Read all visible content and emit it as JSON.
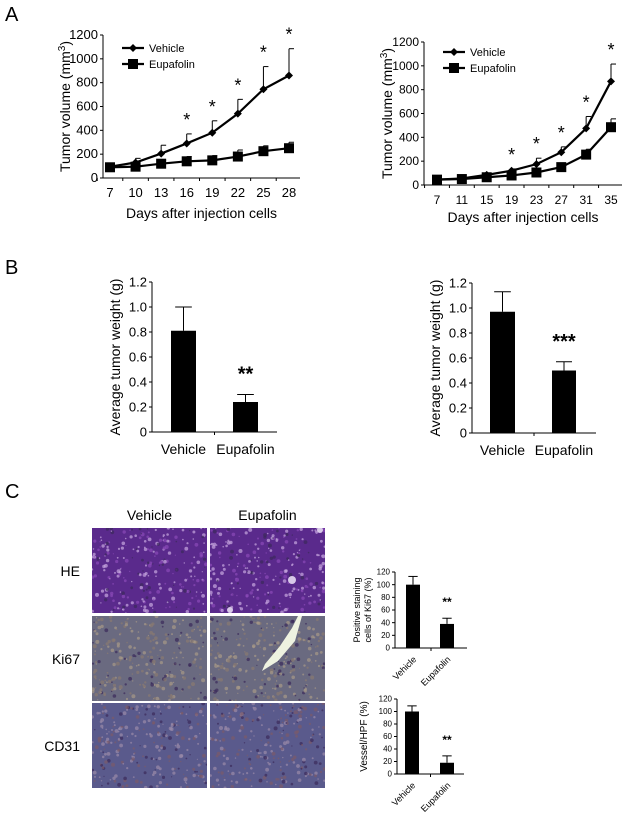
{
  "panels": {
    "A": {
      "letter": "A"
    },
    "B": {
      "letter": "B"
    },
    "C": {
      "letter": "C"
    }
  },
  "histology": {
    "columns": [
      "Vehicle",
      "Eupafolin"
    ],
    "rows": [
      "HE",
      "Ki67",
      "CD31"
    ],
    "colors": {
      "HE": {
        "base": "#5a2a8c",
        "accent": "#8a4ab8",
        "speck": "#c8a8e0"
      },
      "Ki67": {
        "base": "#6a6a80",
        "accent": "#8a7a70",
        "speck": "#a89a88"
      },
      "CD31": {
        "base": "#5a5a8c",
        "accent": "#7a5a6a",
        "speck": "#9a8aa8"
      }
    }
  },
  "chart_data": [
    {
      "id": "A-left",
      "type": "line",
      "title": "",
      "xlabel": "Days after injection cells",
      "ylabel": "Tumor volume (mm3)",
      "x": [
        7,
        10,
        13,
        16,
        19,
        22,
        25,
        28
      ],
      "ylim": [
        0,
        1200
      ],
      "yticks": [
        0,
        200,
        400,
        600,
        800,
        1000,
        1200
      ],
      "legend": [
        "Vehicle",
        "Eupafolin"
      ],
      "legend_position": "upper-left",
      "series": [
        {
          "name": "Vehicle",
          "marker": "diamond",
          "values": [
            95,
            130,
            205,
            290,
            380,
            540,
            745,
            860
          ],
          "errors": [
            10,
            35,
            70,
            80,
            100,
            120,
            190,
            225
          ]
        },
        {
          "name": "Eupafolin",
          "marker": "square",
          "values": [
            90,
            95,
            120,
            140,
            148,
            180,
            225,
            250
          ],
          "errors": [
            10,
            20,
            30,
            40,
            40,
            55,
            45,
            50
          ]
        }
      ],
      "significance": {
        "x": [
          16,
          19,
          22,
          25,
          28
        ],
        "label": "*"
      }
    },
    {
      "id": "A-right",
      "type": "line",
      "title": "",
      "xlabel": "Days after injection cells",
      "ylabel": "Tumor volume (mm3)",
      "x": [
        7,
        11,
        15,
        19,
        23,
        27,
        31,
        35
      ],
      "ylim": [
        0,
        1200
      ],
      "yticks": [
        0,
        200,
        400,
        600,
        800,
        1000,
        1200
      ],
      "legend": [
        "Vehicle",
        "Eupafolin"
      ],
      "legend_position": "upper-left",
      "series": [
        {
          "name": "Vehicle",
          "marker": "diamond",
          "values": [
            45,
            55,
            85,
            120,
            175,
            275,
            475,
            870
          ],
          "errors": [
            5,
            8,
            10,
            15,
            50,
            45,
            100,
            145
          ]
        },
        {
          "name": "Eupafolin",
          "marker": "square",
          "values": [
            45,
            50,
            65,
            80,
            105,
            150,
            255,
            485
          ],
          "errors": [
            5,
            5,
            8,
            10,
            12,
            15,
            45,
            70
          ]
        }
      ],
      "significance": {
        "x": [
          19,
          23,
          27,
          31,
          35
        ],
        "label": "*"
      }
    },
    {
      "id": "B-left",
      "type": "bar",
      "categories": [
        "Vehicle",
        "Eupafolin"
      ],
      "values": [
        0.81,
        0.24
      ],
      "errors": [
        0.19,
        0.06
      ],
      "ylabel": "Average tumor weight (g)",
      "xlabel": "",
      "ylim": [
        0,
        1.2
      ],
      "yticks": [
        "0",
        "0.2",
        "0.4",
        "0.6",
        "0.8",
        "1.0",
        "1.2"
      ],
      "annotations": [
        {
          "category": "Eupafolin",
          "text": "**"
        }
      ]
    },
    {
      "id": "B-right",
      "type": "bar",
      "categories": [
        "Vehicle",
        "Eupafolin"
      ],
      "values": [
        0.97,
        0.5
      ],
      "errors": [
        0.16,
        0.07
      ],
      "ylabel": "Average tumor weight (g)",
      "xlabel": "",
      "ylim": [
        0,
        1.2
      ],
      "yticks": [
        "0",
        "0.2",
        "0.4",
        "0.6",
        "0.8",
        "1.0",
        "1.2"
      ],
      "annotations": [
        {
          "category": "Eupafolin",
          "text": "***"
        }
      ]
    },
    {
      "id": "C-ki67",
      "type": "bar",
      "categories": [
        "Vehicle",
        "Eupafolin"
      ],
      "values": [
        100,
        38
      ],
      "errors": [
        13,
        9
      ],
      "ylabel": "Positive staining cells of Ki67 (%)",
      "ylim": [
        0,
        120
      ],
      "yticks": [
        "0",
        "20",
        "40",
        "60",
        "80",
        "100",
        "120"
      ],
      "annotations": [
        {
          "category": "Eupafolin",
          "text": "**"
        }
      ]
    },
    {
      "id": "C-cd31",
      "type": "bar",
      "categories": [
        "Vehicle",
        "Eupafolin"
      ],
      "values": [
        100,
        18
      ],
      "errors": [
        9,
        11
      ],
      "ylabel": "Vessel/HPF (%)",
      "ylim": [
        0,
        120
      ],
      "yticks": [
        "0",
        "20",
        "40",
        "60",
        "80",
        "100",
        "120"
      ],
      "annotations": [
        {
          "category": "Eupafolin",
          "text": "**"
        }
      ]
    }
  ]
}
